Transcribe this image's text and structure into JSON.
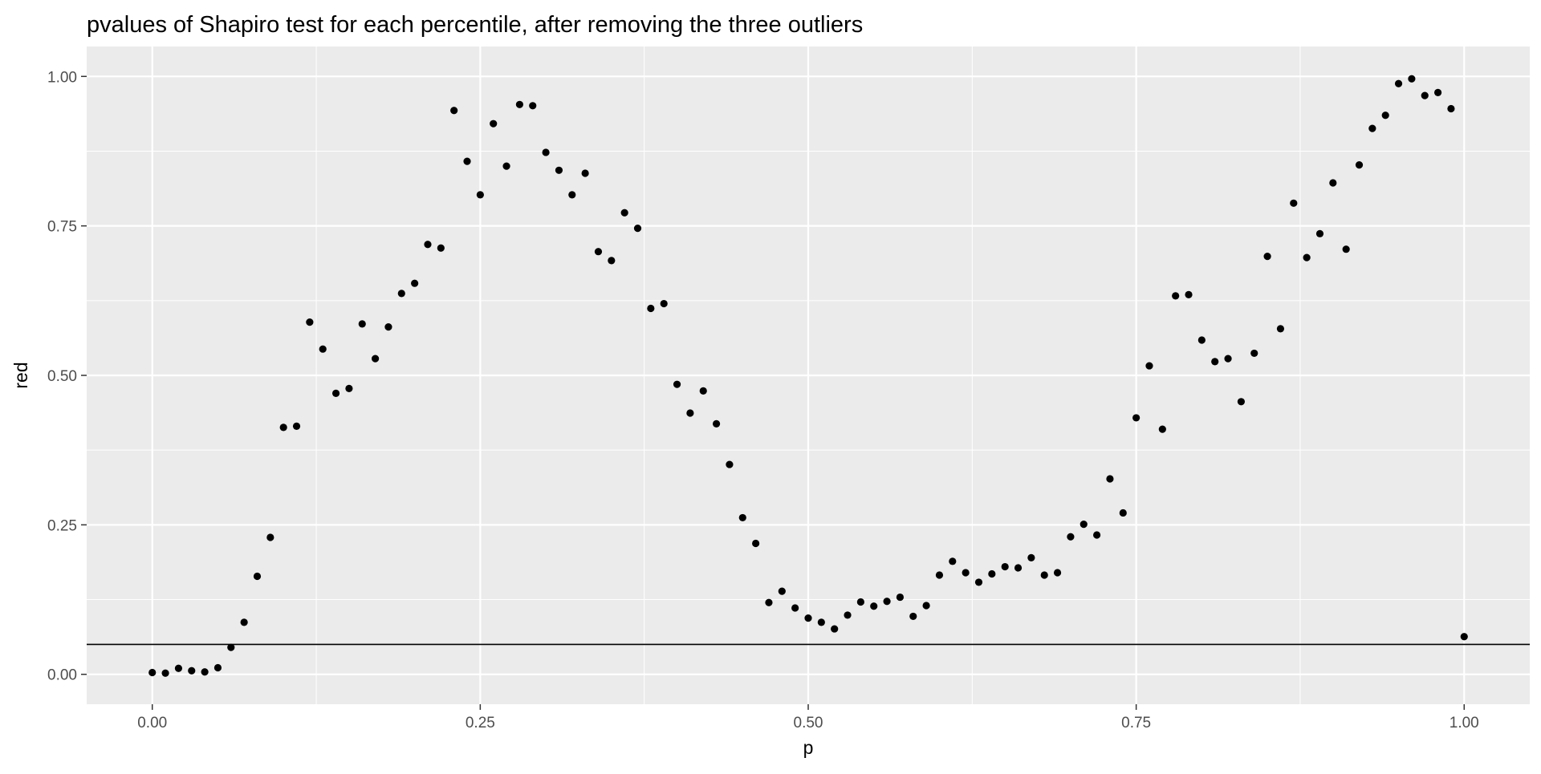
{
  "chart_data": {
    "type": "scatter",
    "title": "pvalues of Shapiro test for each percentile, after removing the three outliers",
    "xlabel": "p",
    "ylabel": "red",
    "xlim": [
      -0.05,
      1.05
    ],
    "ylim": [
      -0.05,
      1.05
    ],
    "x_ticks": [
      0,
      0.25,
      0.5,
      0.75,
      1
    ],
    "x_tick_labels": [
      "0.00",
      "0.25",
      "0.50",
      "0.75",
      "1.00"
    ],
    "y_ticks": [
      0,
      0.25,
      0.5,
      0.75,
      1
    ],
    "y_tick_labels": [
      "0.00",
      "0.25",
      "0.50",
      "0.75",
      "1.00"
    ],
    "hline": 0.05,
    "grid": true,
    "panel_background": "#ebebeb",
    "grid_color": "#ffffff",
    "point_color": "#000000",
    "points": [
      [
        0.0,
        0.003
      ],
      [
        0.01,
        0.002
      ],
      [
        0.02,
        0.01
      ],
      [
        0.03,
        0.006
      ],
      [
        0.04,
        0.004
      ],
      [
        0.05,
        0.011
      ],
      [
        0.06,
        0.045
      ],
      [
        0.07,
        0.087
      ],
      [
        0.08,
        0.164
      ],
      [
        0.09,
        0.229
      ],
      [
        0.1,
        0.413
      ],
      [
        0.11,
        0.415
      ],
      [
        0.12,
        0.589
      ],
      [
        0.13,
        0.544
      ],
      [
        0.14,
        0.47
      ],
      [
        0.15,
        0.478
      ],
      [
        0.16,
        0.586
      ],
      [
        0.17,
        0.528
      ],
      [
        0.18,
        0.581
      ],
      [
        0.19,
        0.637
      ],
      [
        0.2,
        0.654
      ],
      [
        0.21,
        0.719
      ],
      [
        0.22,
        0.713
      ],
      [
        0.23,
        0.943
      ],
      [
        0.24,
        0.858
      ],
      [
        0.25,
        0.802
      ],
      [
        0.26,
        0.921
      ],
      [
        0.27,
        0.85
      ],
      [
        0.28,
        0.953
      ],
      [
        0.29,
        0.951
      ],
      [
        0.3,
        0.873
      ],
      [
        0.31,
        0.843
      ],
      [
        0.32,
        0.802
      ],
      [
        0.33,
        0.838
      ],
      [
        0.34,
        0.707
      ],
      [
        0.35,
        0.692
      ],
      [
        0.36,
        0.772
      ],
      [
        0.37,
        0.746
      ],
      [
        0.38,
        0.612
      ],
      [
        0.39,
        0.62
      ],
      [
        0.4,
        0.485
      ],
      [
        0.41,
        0.437
      ],
      [
        0.42,
        0.474
      ],
      [
        0.43,
        0.419
      ],
      [
        0.44,
        0.351
      ],
      [
        0.45,
        0.262
      ],
      [
        0.46,
        0.219
      ],
      [
        0.47,
        0.12
      ],
      [
        0.48,
        0.139
      ],
      [
        0.49,
        0.111
      ],
      [
        0.5,
        0.094
      ],
      [
        0.51,
        0.087
      ],
      [
        0.52,
        0.076
      ],
      [
        0.53,
        0.099
      ],
      [
        0.54,
        0.121
      ],
      [
        0.55,
        0.114
      ],
      [
        0.56,
        0.122
      ],
      [
        0.57,
        0.129
      ],
      [
        0.58,
        0.097
      ],
      [
        0.59,
        0.115
      ],
      [
        0.6,
        0.166
      ],
      [
        0.61,
        0.189
      ],
      [
        0.62,
        0.17
      ],
      [
        0.63,
        0.154
      ],
      [
        0.64,
        0.168
      ],
      [
        0.65,
        0.18
      ],
      [
        0.66,
        0.178
      ],
      [
        0.67,
        0.195
      ],
      [
        0.68,
        0.166
      ],
      [
        0.69,
        0.17
      ],
      [
        0.7,
        0.23
      ],
      [
        0.71,
        0.251
      ],
      [
        0.72,
        0.233
      ],
      [
        0.73,
        0.327
      ],
      [
        0.74,
        0.27
      ],
      [
        0.75,
        0.429
      ],
      [
        0.76,
        0.516
      ],
      [
        0.77,
        0.41
      ],
      [
        0.78,
        0.633
      ],
      [
        0.79,
        0.635
      ],
      [
        0.8,
        0.559
      ],
      [
        0.81,
        0.523
      ],
      [
        0.82,
        0.528
      ],
      [
        0.83,
        0.456
      ],
      [
        0.84,
        0.537
      ],
      [
        0.85,
        0.699
      ],
      [
        0.86,
        0.578
      ],
      [
        0.87,
        0.788
      ],
      [
        0.88,
        0.697
      ],
      [
        0.89,
        0.737
      ],
      [
        0.9,
        0.822
      ],
      [
        0.91,
        0.711
      ],
      [
        0.92,
        0.852
      ],
      [
        0.93,
        0.913
      ],
      [
        0.94,
        0.935
      ],
      [
        0.95,
        0.988
      ],
      [
        0.96,
        0.996
      ],
      [
        0.97,
        0.968
      ],
      [
        0.98,
        0.973
      ],
      [
        0.99,
        0.946
      ],
      [
        1.0,
        0.063
      ]
    ]
  }
}
